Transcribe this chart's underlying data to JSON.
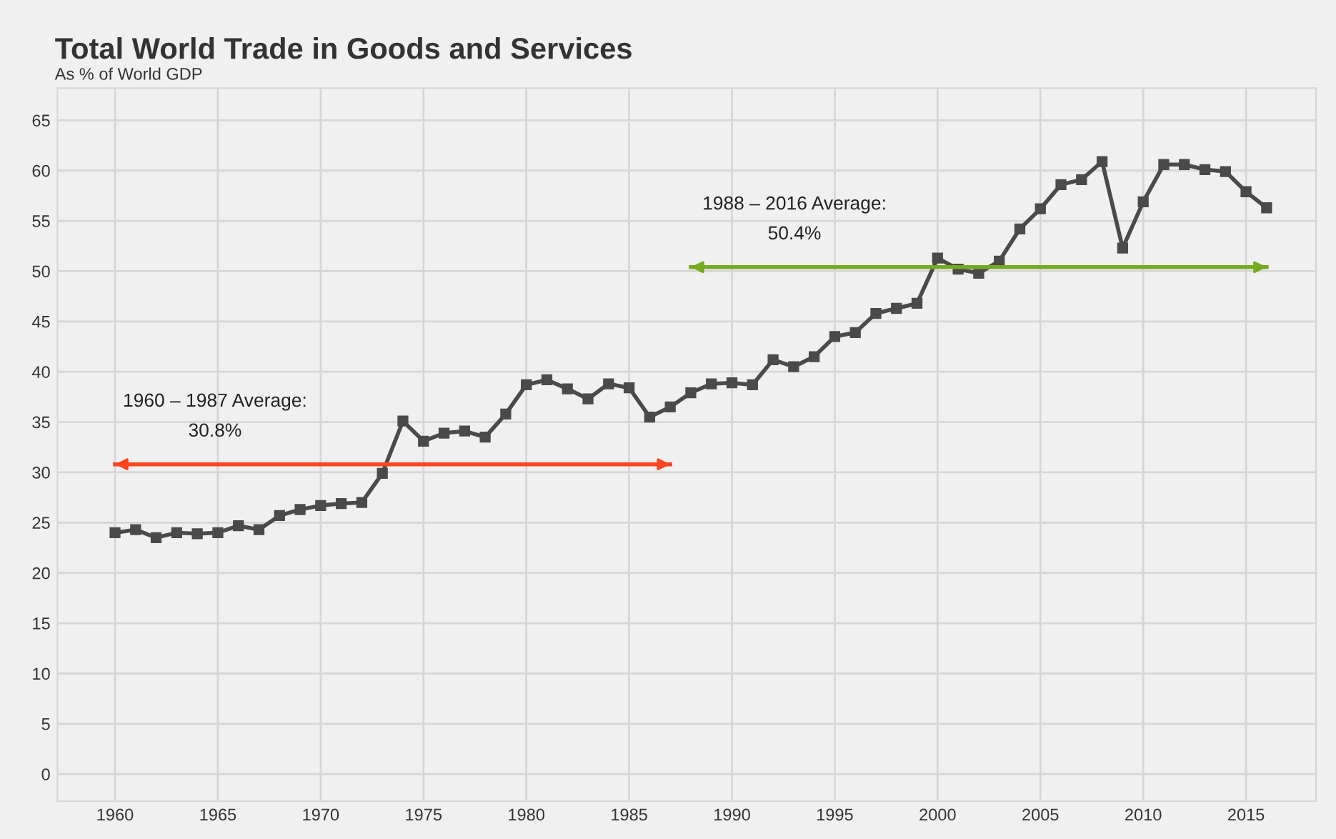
{
  "chart_data": {
    "type": "line",
    "title": "Total World Trade in Goods and Services",
    "subtitle": "As % of World GDP",
    "x": [
      1960,
      1961,
      1962,
      1963,
      1964,
      1965,
      1966,
      1967,
      1968,
      1969,
      1970,
      1971,
      1972,
      1973,
      1974,
      1975,
      1976,
      1977,
      1978,
      1979,
      1980,
      1981,
      1982,
      1983,
      1984,
      1985,
      1986,
      1987,
      1988,
      1989,
      1990,
      1991,
      1992,
      1993,
      1994,
      1995,
      1996,
      1997,
      1998,
      1999,
      2000,
      2001,
      2002,
      2003,
      2004,
      2005,
      2006,
      2007,
      2008,
      2009,
      2010,
      2011,
      2012,
      2013,
      2014,
      2015,
      2016
    ],
    "series": [
      {
        "color": "#4a4a4a",
        "marker": "square",
        "values": [
          24.0,
          24.3,
          23.5,
          24.0,
          23.9,
          24.0,
          24.7,
          24.3,
          25.7,
          26.3,
          26.7,
          26.9,
          27.0,
          29.9,
          35.1,
          33.1,
          33.9,
          34.1,
          33.5,
          35.8,
          38.7,
          39.2,
          38.3,
          37.3,
          38.8,
          38.4,
          35.5,
          36.5,
          37.9,
          38.8,
          38.9,
          38.7,
          41.2,
          40.5,
          41.5,
          43.5,
          43.9,
          45.8,
          46.3,
          46.8,
          51.3,
          50.2,
          49.8,
          51.0,
          54.2,
          56.2,
          58.6,
          59.1,
          60.9,
          52.3,
          56.9,
          60.6,
          60.6,
          60.1,
          59.9,
          57.9,
          56.3
        ]
      },
      {
        "color": "#ff4422",
        "marker": "none",
        "x": [
          1960,
          1987
        ],
        "values": [
          30.8,
          30.8
        ]
      },
      {
        "color": "#77aa22",
        "marker": "none",
        "x": [
          1988,
          2016
        ],
        "values": [
          50.4,
          50.4
        ]
      }
    ],
    "annotations": [
      "1960 – 1987 Average:\n30.8%",
      "1988 – 2016 Average:\n50.4%"
    ],
    "xlim": [
      1957.2,
      2018.4
    ],
    "xticks": [
      1960,
      1965,
      1970,
      1975,
      1980,
      1985,
      1990,
      1995,
      2000,
      2005,
      2010,
      2015
    ],
    "ylim": [
      -2.7,
      68.2
    ],
    "yticks": [
      0,
      5,
      10,
      15,
      20,
      25,
      30,
      35,
      40,
      45,
      50,
      55,
      60,
      65
    ],
    "grid": true,
    "legend": false
  }
}
